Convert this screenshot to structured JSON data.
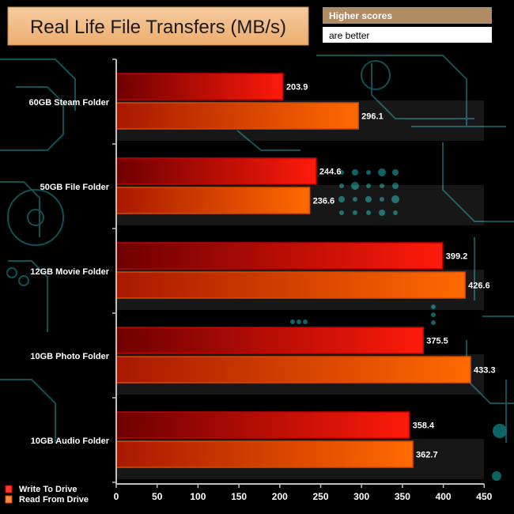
{
  "chart_data": {
    "type": "bar",
    "orientation": "horizontal",
    "title": "Real Life File Transfers (MB/s)",
    "note_line1": "Higher scores",
    "note_line2": "are better",
    "categories": [
      "60GB Steam Folder",
      "50GB File Folder",
      "12GB Movie Folder",
      "10GB Photo Folder",
      "10GB Audio Folder"
    ],
    "series": [
      {
        "name": "Write To  Drive",
        "values": [
          203.9,
          244.6,
          399.2,
          375.5,
          358.4
        ]
      },
      {
        "name": "Read From  Drive",
        "values": [
          296.1,
          236.6,
          426.6,
          433.3,
          362.7
        ]
      }
    ],
    "xlim": [
      0,
      450
    ],
    "xticks": [
      0,
      50,
      100,
      150,
      200,
      250,
      300,
      350,
      400,
      450
    ],
    "xlabel": "",
    "ylabel": "",
    "grid": false,
    "legend_position": "bottom-left"
  },
  "colors": {
    "title_bg": "#f4c08a",
    "note_bg": "#b08c64",
    "write_dark": "#6e0000",
    "write_light": "#ff1a0a",
    "read_dark": "#a81800",
    "read_light": "#ff6a00",
    "axis": "#bfbfbf",
    "circuit": "#0f5d5f"
  }
}
